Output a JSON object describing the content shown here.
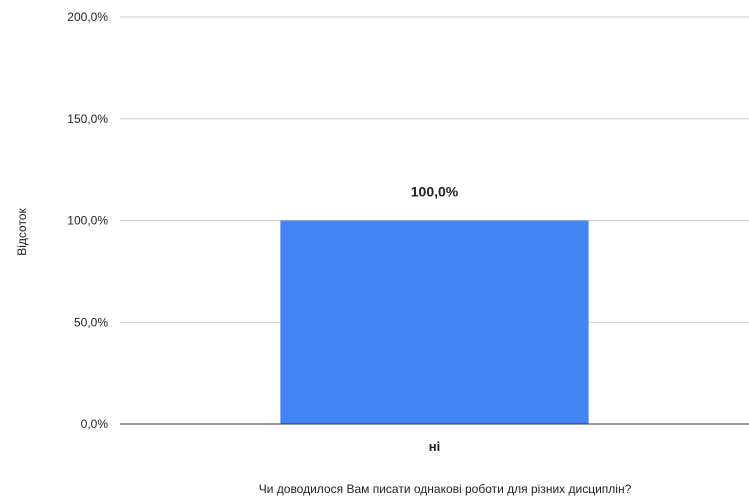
{
  "chart_data": {
    "type": "bar",
    "categories": [
      "ні"
    ],
    "values": [
      100
    ],
    "data_labels": [
      "100,0%"
    ],
    "xlabel": "Чи доводилося Вам писати однакові роботи для різних дисциплін?",
    "ylabel": "Відсоток",
    "ylim": [
      0,
      200
    ],
    "yticks": [
      0,
      50,
      100,
      150,
      200
    ],
    "ytick_labels": [
      "0,0%",
      "50,0%",
      "100,0%",
      "150,0%",
      "200,0%"
    ],
    "grid": true,
    "legend": "none",
    "bar_color": "#4285F4"
  }
}
